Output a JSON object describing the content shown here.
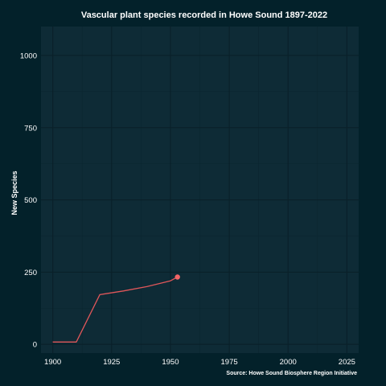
{
  "chart_data": {
    "type": "line",
    "title": "Vascular plant species recorded in Howe Sound 1897-2022",
    "xlabel": "",
    "ylabel": "New Species",
    "caption": "Source: Howe Sound Biosphere Region Initiative",
    "xlim": [
      1895,
      2030
    ],
    "ylim": [
      -30,
      1100
    ],
    "x_ticks": [
      1900,
      1925,
      1950,
      1975,
      2000,
      2025
    ],
    "y_ticks": [
      0,
      250,
      500,
      750,
      1000
    ],
    "grid": true,
    "series": [
      {
        "x": [
          1900,
          1910,
          1920,
          1930,
          1940,
          1950,
          1953
        ],
        "y": [
          8,
          8,
          172,
          185,
          200,
          220,
          233
        ],
        "highlight_last_point": true
      }
    ],
    "colors": {
      "background": "#03212a",
      "panel": "#0e2b36",
      "grid_major": "#0a2029",
      "grid_minor": "#0b2630",
      "line": "#e0575a",
      "point": "#f26466",
      "text": "#ffffff"
    }
  }
}
